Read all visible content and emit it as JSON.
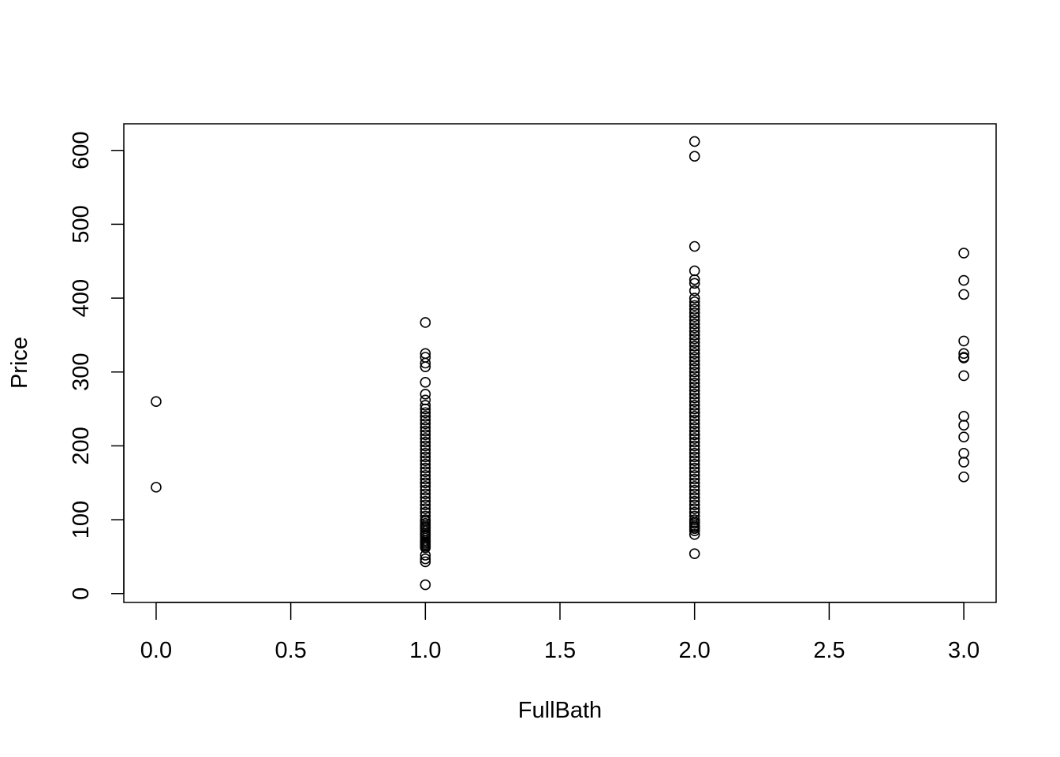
{
  "chart_data": {
    "type": "scatter",
    "title": "",
    "xlabel": "FullBath",
    "ylabel": "Price",
    "xlim": [
      -0.12,
      3.12
    ],
    "ylim": [
      -12,
      636
    ],
    "xticks": [
      0.0,
      0.5,
      1.0,
      1.5,
      2.0,
      2.5,
      3.0
    ],
    "xtick_labels": [
      "0.0",
      "0.5",
      "1.0",
      "1.5",
      "2.0",
      "2.5",
      "3.0"
    ],
    "yticks": [
      0,
      100,
      200,
      300,
      400,
      500,
      600
    ],
    "ytick_labels": [
      "0",
      "100",
      "200",
      "300",
      "400",
      "500",
      "600"
    ],
    "grid": false,
    "marker": "open-circle",
    "series": [
      {
        "x": [
          0,
          0
        ],
        "y": [
          260,
          144
        ]
      },
      {
        "x": [
          1,
          1,
          1,
          1,
          1,
          1,
          1,
          1,
          1,
          1,
          1,
          1,
          1,
          1,
          1,
          1,
          1,
          1,
          1,
          1,
          1,
          1,
          1,
          1,
          1,
          1,
          1,
          1,
          1,
          1,
          1,
          1,
          1,
          1,
          1,
          1,
          1,
          1,
          1,
          1,
          1,
          1,
          1,
          1,
          1,
          1,
          1,
          1,
          1,
          1,
          1,
          1,
          1,
          1,
          1,
          1,
          1,
          1,
          1,
          1,
          1
        ],
        "y": [
          367,
          325,
          320,
          312,
          307,
          286,
          270,
          262,
          255,
          250,
          245,
          240,
          235,
          230,
          225,
          220,
          215,
          210,
          205,
          200,
          195,
          190,
          185,
          180,
          175,
          170,
          165,
          160,
          155,
          150,
          145,
          140,
          135,
          130,
          125,
          120,
          115,
          110,
          105,
          100,
          98,
          95,
          92,
          90,
          88,
          85,
          82,
          80,
          78,
          75,
          72,
          70,
          68,
          66,
          64,
          62,
          52,
          47,
          43,
          12,
          150
        ]
      },
      {
        "x": [
          2,
          2,
          2,
          2,
          2,
          2,
          2,
          2,
          2,
          2,
          2,
          2,
          2,
          2,
          2,
          2,
          2,
          2,
          2,
          2,
          2,
          2,
          2,
          2,
          2,
          2,
          2,
          2,
          2,
          2,
          2,
          2,
          2,
          2,
          2,
          2,
          2,
          2,
          2,
          2,
          2,
          2,
          2,
          2,
          2,
          2,
          2,
          2,
          2,
          2,
          2,
          2,
          2,
          2,
          2,
          2,
          2,
          2,
          2,
          2,
          2,
          2,
          2,
          2,
          2,
          2,
          2,
          2,
          2,
          2,
          2,
          2,
          2,
          2,
          2,
          2,
          2,
          2
        ],
        "y": [
          612,
          592,
          470,
          437,
          425,
          420,
          410,
          400,
          395,
          390,
          385,
          380,
          375,
          370,
          365,
          360,
          355,
          350,
          345,
          340,
          335,
          330,
          325,
          320,
          315,
          310,
          305,
          300,
          295,
          290,
          285,
          280,
          275,
          270,
          265,
          260,
          255,
          250,
          245,
          240,
          235,
          230,
          225,
          220,
          215,
          210,
          205,
          200,
          195,
          190,
          185,
          180,
          175,
          170,
          165,
          160,
          155,
          150,
          145,
          140,
          135,
          130,
          125,
          120,
          115,
          110,
          105,
          100,
          97,
          95,
          92,
          90,
          88,
          85,
          80,
          54,
          245,
          215
        ]
      },
      {
        "x": [
          3,
          3,
          3,
          3,
          3,
          3,
          3,
          3,
          3,
          3,
          3,
          3,
          3,
          3
        ],
        "y": [
          461,
          424,
          405,
          342,
          325,
          319,
          295,
          240,
          228,
          212,
          190,
          178,
          158,
          320
        ]
      }
    ]
  }
}
